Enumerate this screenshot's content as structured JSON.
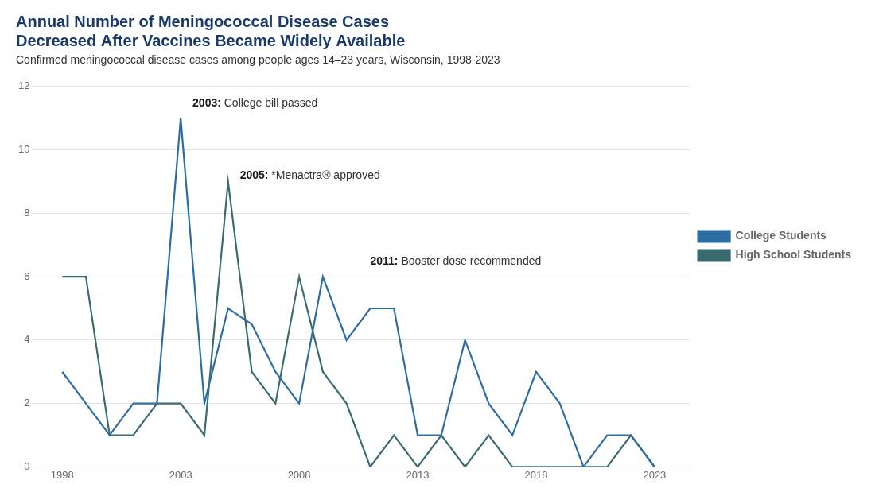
{
  "chart_data": {
    "type": "line",
    "title": [
      "Annual Number of Meningococcal Disease Cases",
      "Decreased After Vaccines Became Widely Available"
    ],
    "subtitle": "Confirmed meningococcal disease cases among people ages 14–23 years, Wisconsin, 1998-2023",
    "x": [
      1998,
      1999,
      2000,
      2001,
      2002,
      2003,
      2004,
      2005,
      2006,
      2007,
      2008,
      2009,
      2010,
      2011,
      2012,
      2013,
      2014,
      2015,
      2016,
      2017,
      2018,
      2019,
      2020,
      2021,
      2022,
      2023
    ],
    "series": [
      {
        "name": "College Students",
        "color": "#2e6da4",
        "values": [
          3,
          2,
          1,
          2,
          2,
          11,
          2,
          5,
          4.5,
          3,
          2,
          6,
          4,
          5,
          5,
          1,
          1,
          4,
          2,
          1,
          3,
          2,
          0,
          1,
          1,
          0
        ]
      },
      {
        "name": "High School Students",
        "color": "#3a6b6e",
        "values": [
          6,
          6,
          1,
          1,
          2,
          2,
          1,
          9,
          3,
          2,
          6,
          3,
          2,
          0,
          1,
          0,
          1,
          0,
          1,
          0,
          0,
          0,
          0,
          0,
          1,
          0
        ]
      }
    ],
    "xlim": [
      1997.0,
      2024.5
    ],
    "xticks": [
      1998,
      2003,
      2008,
      2013,
      2018,
      2023
    ],
    "ylim": [
      0,
      12
    ],
    "yticks": [
      0,
      2,
      4,
      6,
      8,
      10,
      12
    ],
    "grid": "y",
    "legend": "right",
    "annotations": [
      {
        "x": 2003.5,
        "y": 11.3,
        "label": "2003: College bill passed"
      },
      {
        "x": 2005.5,
        "y": 9.0,
        "label": "2005: *Menactra® approved"
      },
      {
        "x": 2011.0,
        "y": 6.3,
        "label": "2011: Booster dose recommended"
      }
    ]
  }
}
